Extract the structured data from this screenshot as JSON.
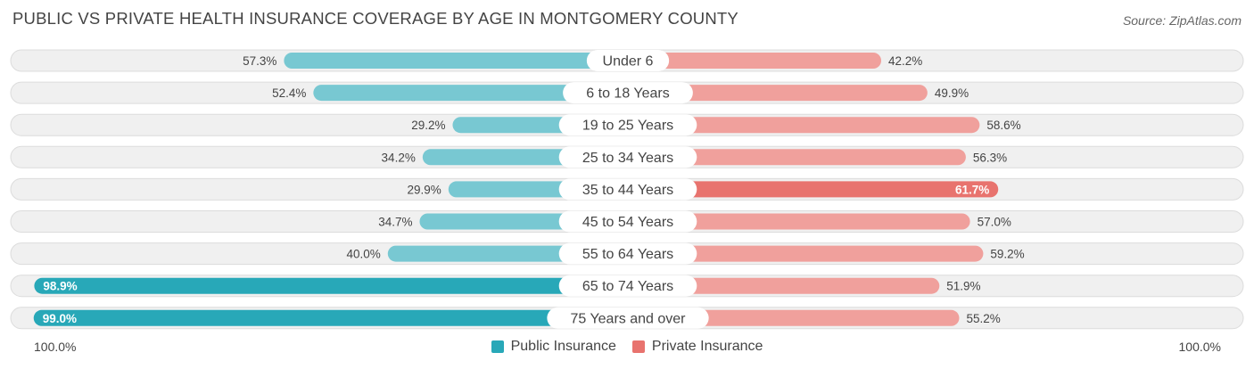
{
  "title": "PUBLIC VS PRIVATE HEALTH INSURANCE COVERAGE BY AGE IN MONTGOMERY COUNTY",
  "source": "Source: ZipAtlas.com",
  "axis": {
    "left_label": "100.0%",
    "right_label": "100.0%"
  },
  "legend": {
    "public_label": "Public Insurance",
    "private_label": "Private Insurance"
  },
  "colors": {
    "public": "#78c8d2",
    "public_strong": "#28a8b8",
    "private": "#f0a09c",
    "private_strong": "#e8736e",
    "track": "#f0f0f0",
    "track_border": "#dcdcdc"
  },
  "chart_data": {
    "type": "bar",
    "orientation": "diverging-horizontal",
    "title": "PUBLIC VS PRIVATE HEALTH INSURANCE COVERAGE BY AGE IN MONTGOMERY COUNTY",
    "categories": [
      "Under 6",
      "6 to 18 Years",
      "19 to 25 Years",
      "25 to 34 Years",
      "35 to 44 Years",
      "45 to 54 Years",
      "55 to 64 Years",
      "65 to 74 Years",
      "75 Years and over"
    ],
    "series": [
      {
        "name": "Public Insurance",
        "values": [
          57.3,
          52.4,
          29.2,
          34.2,
          29.9,
          34.7,
          40.0,
          98.9,
          99.0
        ],
        "labels": [
          "57.3%",
          "52.4%",
          "29.2%",
          "34.2%",
          "29.9%",
          "34.7%",
          "40.0%",
          "98.9%",
          "99.0%"
        ]
      },
      {
        "name": "Private Insurance",
        "values": [
          42.2,
          49.9,
          58.6,
          56.3,
          61.7,
          57.0,
          59.2,
          51.9,
          55.2
        ],
        "labels": [
          "42.2%",
          "49.9%",
          "58.6%",
          "56.3%",
          "61.7%",
          "57.0%",
          "59.2%",
          "51.9%",
          "55.2%"
        ]
      }
    ],
    "xlim": [
      0,
      100
    ],
    "legend_position": "bottom-center"
  }
}
